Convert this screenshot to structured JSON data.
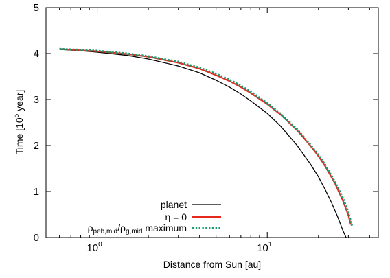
{
  "chart_data": {
    "type": "line",
    "xlabel": "Distance from Sun [au]",
    "ylabel": {
      "prefix": "Time [10",
      "exponent": "5",
      "suffix": " year]"
    },
    "x_scale": "log",
    "xlim": [
      0.5,
      45
    ],
    "ylim": [
      0,
      5
    ],
    "x_ticks": [
      {
        "value": 1,
        "base": "10",
        "exponent": "0"
      },
      {
        "value": 10,
        "base": "10",
        "exponent": "1"
      }
    ],
    "x_minor_ticks": [
      0.5,
      0.6,
      0.7,
      0.8,
      0.9,
      2,
      3,
      4,
      5,
      6,
      7,
      8,
      9,
      20,
      30,
      40
    ],
    "y_ticks": [
      "0",
      "1",
      "2",
      "3",
      "4",
      "5"
    ],
    "grid": false,
    "legend_position": "bottom-left",
    "series": [
      {
        "name": "planet",
        "color": "#000000",
        "style": "solid",
        "points": [
          [
            0.6,
            4.09
          ],
          [
            0.8,
            4.06
          ],
          [
            1.0,
            4.03
          ],
          [
            1.5,
            3.96
          ],
          [
            2.0,
            3.88
          ],
          [
            3.0,
            3.73
          ],
          [
            4.0,
            3.58
          ],
          [
            5.0,
            3.42
          ],
          [
            6.0,
            3.27
          ],
          [
            7.0,
            3.12
          ],
          [
            8.0,
            2.97
          ],
          [
            10.0,
            2.7
          ],
          [
            12.0,
            2.42
          ],
          [
            15.0,
            2.0
          ],
          [
            18.0,
            1.59
          ],
          [
            20.0,
            1.32
          ],
          [
            22.0,
            1.03
          ],
          [
            24.0,
            0.74
          ],
          [
            26.0,
            0.44
          ],
          [
            28.0,
            0.13
          ],
          [
            29.1,
            0.0
          ]
        ]
      },
      {
        "name": "η = 0",
        "color": "#e8281e",
        "style": "solid",
        "points": [
          [
            0.6,
            4.1
          ],
          [
            0.8,
            4.07
          ],
          [
            1.0,
            4.05
          ],
          [
            1.5,
            3.99
          ],
          [
            2.0,
            3.93
          ],
          [
            3.0,
            3.8
          ],
          [
            4.0,
            3.67
          ],
          [
            5.0,
            3.53
          ],
          [
            6.0,
            3.4
          ],
          [
            7.0,
            3.27
          ],
          [
            8.0,
            3.14
          ],
          [
            10.0,
            2.9
          ],
          [
            12.0,
            2.67
          ],
          [
            15.0,
            2.33
          ],
          [
            18.0,
            1.99
          ],
          [
            20.0,
            1.77
          ],
          [
            22.0,
            1.54
          ],
          [
            25.0,
            1.18
          ],
          [
            28.0,
            0.78
          ],
          [
            30.0,
            0.48
          ],
          [
            31.0,
            0.28
          ]
        ]
      },
      {
        "name": "ρpeb,mid/ρg,mid maximum",
        "label_parts": {
          "rho1": "ρ",
          "sub1": "peb,mid",
          "slash": "/ρ",
          "sub2": "g,mid",
          "word": " maximum"
        },
        "color": "#1a9a6e",
        "style": "dotted",
        "points": [
          [
            0.6,
            4.1
          ],
          [
            0.8,
            4.08
          ],
          [
            1.0,
            4.06
          ],
          [
            1.5,
            4.0
          ],
          [
            2.0,
            3.94
          ],
          [
            3.0,
            3.82
          ],
          [
            4.0,
            3.69
          ],
          [
            5.0,
            3.56
          ],
          [
            6.0,
            3.43
          ],
          [
            7.0,
            3.3
          ],
          [
            8.0,
            3.17
          ],
          [
            10.0,
            2.92
          ],
          [
            12.0,
            2.69
          ],
          [
            15.0,
            2.35
          ],
          [
            18.0,
            2.01
          ],
          [
            20.0,
            1.79
          ],
          [
            22.0,
            1.57
          ],
          [
            25.0,
            1.21
          ],
          [
            28.0,
            0.84
          ],
          [
            30.0,
            0.54
          ],
          [
            31.5,
            0.26
          ]
        ]
      }
    ]
  }
}
